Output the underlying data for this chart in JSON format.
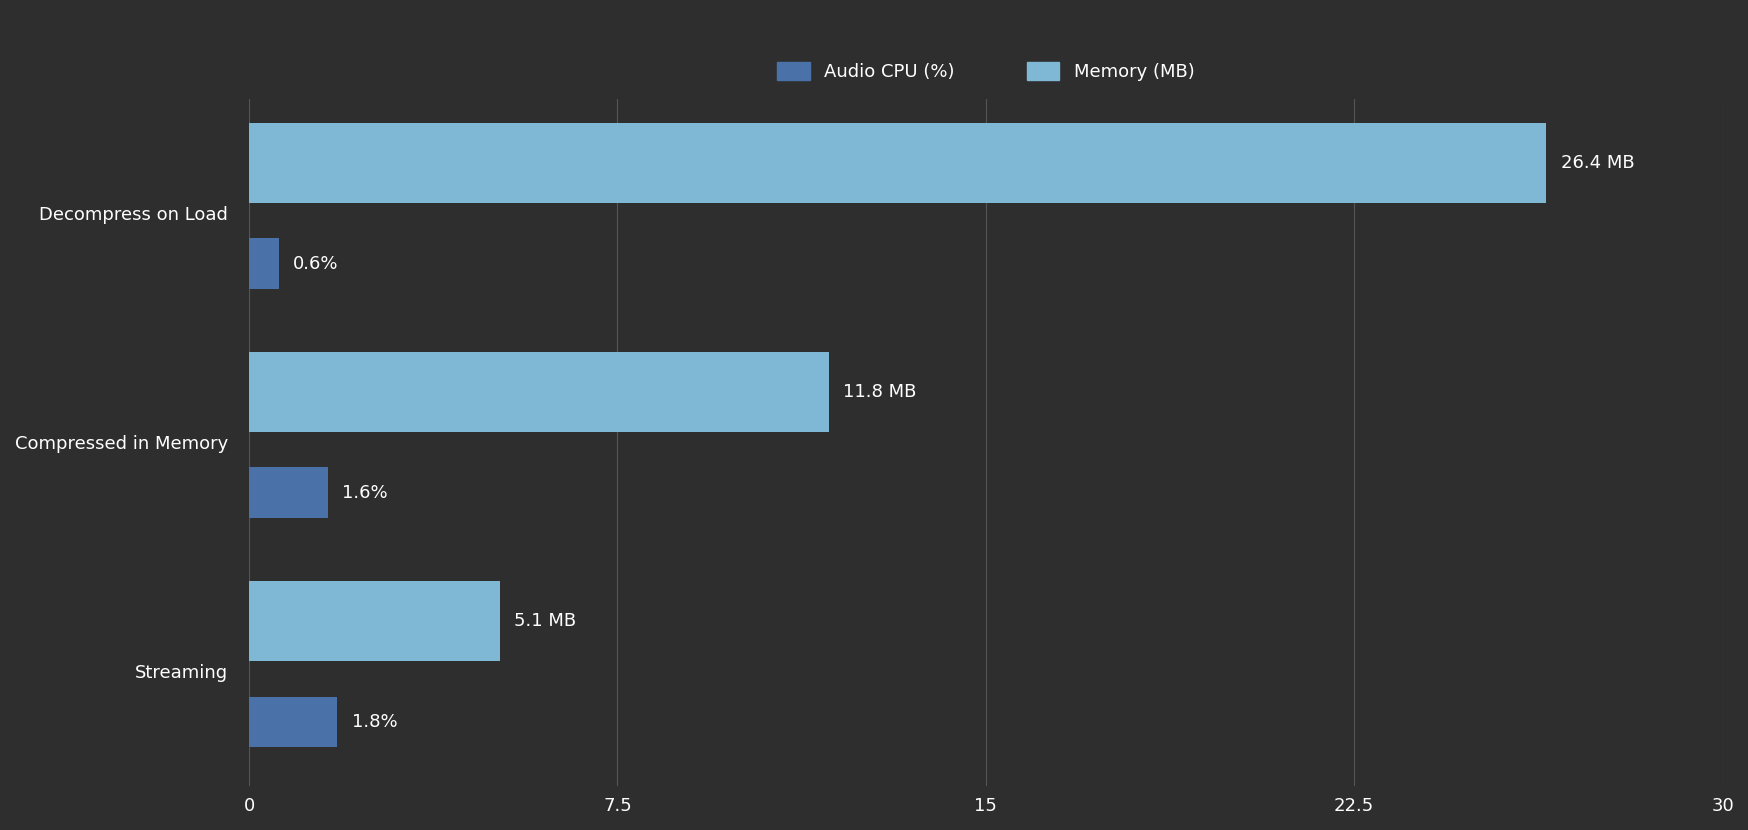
{
  "categories": [
    "Decompress on Load",
    "Compressed in Memory",
    "Streaming"
  ],
  "cpu_values": [
    0.6,
    1.6,
    1.8
  ],
  "memory_values": [
    26.4,
    11.8,
    5.1
  ],
  "cpu_labels": [
    "0.6%",
    "1.6%",
    "1.8%"
  ],
  "memory_labels": [
    "26.4 MB",
    "11.8 MB",
    "5.1 MB"
  ],
  "cpu_color": "#4a72a8",
  "memory_color": "#7eb8d4",
  "background_color": "#2e2e2e",
  "text_color": "#ffffff",
  "grid_color": "#555555",
  "legend_cpu": "Audio CPU (%)",
  "legend_memory": "Memory (MB)",
  "xlim": [
    0,
    30
  ],
  "xticks": [
    0,
    7.5,
    15,
    22.5,
    30
  ],
  "cpu_bar_height": 0.22,
  "memory_bar_height": 0.35,
  "label_fontsize": 13,
  "tick_fontsize": 13,
  "legend_fontsize": 13,
  "annotation_fontsize": 13
}
